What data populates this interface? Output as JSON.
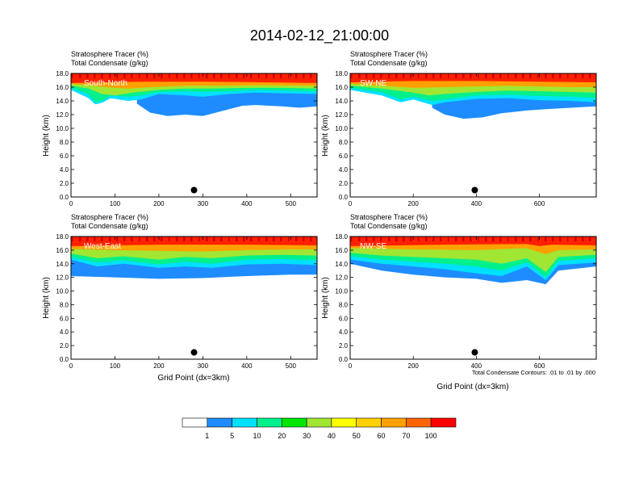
{
  "page_title": "2014-02-12_21:00:00",
  "colorbar": {
    "labels": [
      "1",
      "5",
      "10",
      "20",
      "30",
      "40",
      "50",
      "60",
      "70",
      "100"
    ],
    "colors": [
      "#ffffff",
      "#1e8cff",
      "#00e0ff",
      "#00f08c",
      "#00e600",
      "#a0e632",
      "#ffff00",
      "#ffd200",
      "#ffa000",
      "#ff6400",
      "#ff0000"
    ]
  },
  "contour_note": "Total Condensate Contours: .01 to .01 by .000",
  "chart_data": [
    {
      "type": "heatmap",
      "panel_label": "South-North",
      "title_line1": "Stratosphere Tracer   (%)",
      "title_line2": "Total Condensate   (g/kg)",
      "ylabel": "Height (km)",
      "xlabel": "",
      "xlim": [
        0,
        560
      ],
      "ylim": [
        0,
        18
      ],
      "xticks": [
        0,
        100,
        200,
        300,
        400,
        500
      ],
      "yticks": [
        "0.0",
        "2.0",
        "4.0",
        "6.0",
        "8.0",
        "10.0",
        "12.0",
        "14.0",
        "16.0",
        "18.0"
      ],
      "marker": {
        "x": 280,
        "y": 1.0
      },
      "bands": [
        {
          "level": 100,
          "bottom": [
            [
              0,
              16.6
            ],
            [
              150,
              16.8
            ],
            [
              300,
              16.8
            ],
            [
              450,
              16.7
            ],
            [
              560,
              16.6
            ]
          ]
        },
        {
          "level": 70,
          "bottom": [
            [
              0,
              16.5
            ],
            [
              40,
              16.3
            ],
            [
              80,
              16.0
            ],
            [
              130,
              15.8
            ],
            [
              180,
              16.0
            ],
            [
              260,
              16.2
            ],
            [
              340,
              16.2
            ],
            [
              440,
              16.3
            ],
            [
              560,
              16.2
            ]
          ]
        },
        {
          "level": 50,
          "bottom": [
            [
              0,
              16.2
            ],
            [
              40,
              15.8
            ],
            [
              70,
              15.0
            ],
            [
              100,
              14.8
            ],
            [
              140,
              15.2
            ],
            [
              200,
              15.6
            ],
            [
              260,
              15.8
            ],
            [
              320,
              15.8
            ],
            [
              400,
              15.9
            ],
            [
              480,
              15.9
            ],
            [
              560,
              15.8
            ]
          ]
        },
        {
          "level": 30,
          "bottom": [
            [
              0,
              15.9
            ],
            [
              40,
              15.0
            ],
            [
              55,
              13.8
            ],
            [
              70,
              14.0
            ],
            [
              90,
              14.8
            ],
            [
              130,
              14.6
            ],
            [
              160,
              14.8
            ],
            [
              200,
              15.3
            ],
            [
              260,
              15.4
            ],
            [
              300,
              15.3
            ],
            [
              360,
              15.4
            ],
            [
              420,
              15.6
            ],
            [
              480,
              15.5
            ],
            [
              560,
              15.4
            ]
          ]
        },
        {
          "level": 10,
          "bottom": [
            [
              0,
              15.6
            ],
            [
              40,
              14.4
            ],
            [
              55,
              13.5
            ],
            [
              70,
              13.7
            ],
            [
              90,
              14.4
            ],
            [
              130,
              14.0
            ],
            [
              160,
              14.2
            ],
            [
              200,
              15.0
            ],
            [
              260,
              14.8
            ],
            [
              300,
              14.6
            ],
            [
              360,
              15.0
            ],
            [
              420,
              15.2
            ],
            [
              480,
              15.1
            ],
            [
              560,
              15.0
            ]
          ]
        },
        {
          "level": 5,
          "bottom": [
            [
              150,
              13.6
            ],
            [
              180,
              12.3
            ],
            [
              220,
              11.8
            ],
            [
              260,
              12.0
            ],
            [
              300,
              11.8
            ],
            [
              330,
              12.3
            ],
            [
              360,
              12.8
            ],
            [
              390,
              13.3
            ],
            [
              420,
              13.4
            ],
            [
              480,
              13.2
            ],
            [
              520,
              13.0
            ],
            [
              560,
              13.2
            ]
          ]
        }
      ]
    },
    {
      "type": "heatmap",
      "panel_label": "SW-NE",
      "title_line1": "Stratosphere Tracer   (%)",
      "title_line2": "Total Condensate   (g/kg)",
      "ylabel": "Height (km)",
      "xlabel": "",
      "xlim": [
        0,
        780
      ],
      "ylim": [
        0,
        18
      ],
      "xticks": [
        0,
        200,
        400,
        600
      ],
      "yticks": [
        "0.0",
        "2.0",
        "4.0",
        "6.0",
        "8.0",
        "10.0",
        "12.0",
        "14.0",
        "16.0",
        "18.0"
      ],
      "marker": {
        "x": 395,
        "y": 1.0
      },
      "bands": [
        {
          "level": 100,
          "bottom": [
            [
              0,
              16.7
            ],
            [
              200,
              16.9
            ],
            [
              400,
              16.9
            ],
            [
              600,
              16.8
            ],
            [
              780,
              16.7
            ]
          ]
        },
        {
          "level": 70,
          "bottom": [
            [
              0,
              16.5
            ],
            [
              100,
              16.2
            ],
            [
              200,
              15.9
            ],
            [
              300,
              16.0
            ],
            [
              400,
              16.1
            ],
            [
              500,
              16.2
            ],
            [
              600,
              16.1
            ],
            [
              700,
              16.0
            ],
            [
              780,
              16.0
            ]
          ]
        },
        {
          "level": 50,
          "bottom": [
            [
              0,
              16.2
            ],
            [
              100,
              15.8
            ],
            [
              200,
              15.2
            ],
            [
              250,
              14.8
            ],
            [
              300,
              15.0
            ],
            [
              400,
              15.3
            ],
            [
              500,
              15.5
            ],
            [
              600,
              15.4
            ],
            [
              700,
              15.3
            ],
            [
              780,
              15.2
            ]
          ]
        },
        {
          "level": 30,
          "bottom": [
            [
              0,
              15.9
            ],
            [
              100,
              15.3
            ],
            [
              160,
              14.2
            ],
            [
              200,
              14.6
            ],
            [
              260,
              14.0
            ],
            [
              300,
              14.2
            ],
            [
              400,
              14.8
            ],
            [
              500,
              14.9
            ],
            [
              600,
              14.7
            ],
            [
              700,
              14.6
            ],
            [
              780,
              14.4
            ]
          ]
        },
        {
          "level": 10,
          "bottom": [
            [
              0,
              15.6
            ],
            [
              100,
              14.8
            ],
            [
              160,
              13.8
            ],
            [
              200,
              14.2
            ],
            [
              260,
              13.4
            ],
            [
              300,
              13.8
            ],
            [
              400,
              14.3
            ],
            [
              500,
              14.4
            ],
            [
              600,
              14.1
            ],
            [
              700,
              14.0
            ],
            [
              780,
              13.8
            ]
          ]
        },
        {
          "level": 5,
          "bottom": [
            [
              260,
              13.0
            ],
            [
              300,
              12.0
            ],
            [
              360,
              11.4
            ],
            [
              420,
              11.6
            ],
            [
              480,
              12.2
            ],
            [
              560,
              12.6
            ],
            [
              620,
              12.8
            ],
            [
              700,
              13.0
            ],
            [
              780,
              13.2
            ]
          ]
        }
      ]
    },
    {
      "type": "heatmap",
      "panel_label": "West-East",
      "title_line1": "Stratosphere Tracer   (%)",
      "title_line2": "Total Condensate   (g/kg)",
      "ylabel": "Height (km)",
      "xlabel": "Grid Point (dx=3km)",
      "xlim": [
        0,
        560
      ],
      "ylim": [
        0,
        18
      ],
      "xticks": [
        0,
        100,
        200,
        300,
        400,
        500
      ],
      "yticks": [
        "0.0",
        "2.0",
        "4.0",
        "6.0",
        "8.0",
        "10.0",
        "12.0",
        "14.0",
        "16.0",
        "18.0"
      ],
      "marker": {
        "x": 280,
        "y": 1.0
      },
      "bands": [
        {
          "level": 100,
          "bottom": [
            [
              0,
              16.6
            ],
            [
              200,
              16.8
            ],
            [
              400,
              16.8
            ],
            [
              560,
              16.7
            ]
          ]
        },
        {
          "level": 70,
          "bottom": [
            [
              0,
              16.2
            ],
            [
              100,
              16.0
            ],
            [
              200,
              15.9
            ],
            [
              300,
              15.8
            ],
            [
              400,
              16.0
            ],
            [
              500,
              16.1
            ],
            [
              560,
              16.1
            ]
          ]
        },
        {
          "level": 50,
          "bottom": [
            [
              0,
              15.5
            ],
            [
              60,
              14.8
            ],
            [
              120,
              15.1
            ],
            [
              200,
              14.6
            ],
            [
              260,
              15.0
            ],
            [
              320,
              14.8
            ],
            [
              400,
              15.2
            ],
            [
              480,
              15.3
            ],
            [
              560,
              15.2
            ]
          ]
        },
        {
          "level": 30,
          "bottom": [
            [
              0,
              15.0
            ],
            [
              60,
              14.2
            ],
            [
              120,
              14.5
            ],
            [
              200,
              13.9
            ],
            [
              260,
              14.3
            ],
            [
              320,
              14.0
            ],
            [
              400,
              14.6
            ],
            [
              480,
              14.7
            ],
            [
              560,
              14.5
            ]
          ]
        },
        {
          "level": 10,
          "bottom": [
            [
              0,
              14.6
            ],
            [
              60,
              13.6
            ],
            [
              120,
              14.0
            ],
            [
              200,
              13.4
            ],
            [
              260,
              13.6
            ],
            [
              320,
              13.4
            ],
            [
              400,
              13.9
            ],
            [
              480,
              14.0
            ],
            [
              560,
              13.8
            ]
          ]
        },
        {
          "level": 5,
          "bottom": [
            [
              0,
              12.2
            ],
            [
              100,
              12.0
            ],
            [
              200,
              11.8
            ],
            [
              300,
              11.9
            ],
            [
              400,
              12.2
            ],
            [
              500,
              12.4
            ],
            [
              560,
              12.4
            ]
          ]
        }
      ]
    },
    {
      "type": "heatmap",
      "panel_label": "NW-SE",
      "title_line1": "Stratosphere Tracer   (%)",
      "title_line2": "Total Condensate   (g/kg)",
      "ylabel": "Height (km)",
      "xlabel": "Grid Point (dx=3km)",
      "xlim": [
        0,
        780
      ],
      "ylim": [
        0,
        18
      ],
      "xticks": [
        0,
        200,
        400,
        600
      ],
      "yticks": [
        "0.0",
        "2.0",
        "4.0",
        "6.0",
        "8.0",
        "10.0",
        "12.0",
        "14.0",
        "16.0",
        "18.0"
      ],
      "marker": {
        "x": 395,
        "y": 1.0
      },
      "bands": [
        {
          "level": 100,
          "bottom": [
            [
              0,
              16.6
            ],
            [
              300,
              16.8
            ],
            [
              560,
              16.9
            ],
            [
              600,
              16.6
            ],
            [
              640,
              16.8
            ],
            [
              780,
              16.7
            ]
          ]
        },
        {
          "level": 70,
          "bottom": [
            [
              0,
              16.3
            ],
            [
              200,
              16.1
            ],
            [
              400,
              16.0
            ],
            [
              560,
              16.3
            ],
            [
              620,
              15.4
            ],
            [
              660,
              16.0
            ],
            [
              780,
              16.1
            ]
          ]
        },
        {
          "level": 50,
          "bottom": [
            [
              0,
              15.6
            ],
            [
              100,
              15.2
            ],
            [
              200,
              15.0
            ],
            [
              300,
              14.8
            ],
            [
              400,
              14.6
            ],
            [
              480,
              14.0
            ],
            [
              560,
              14.8
            ],
            [
              620,
              12.8
            ],
            [
              660,
              15.0
            ],
            [
              780,
              15.3
            ]
          ]
        },
        {
          "level": 30,
          "bottom": [
            [
              0,
              15.1
            ],
            [
              100,
              14.6
            ],
            [
              200,
              14.3
            ],
            [
              300,
              14.0
            ],
            [
              400,
              13.6
            ],
            [
              480,
              13.0
            ],
            [
              560,
              14.2
            ],
            [
              620,
              12.0
            ],
            [
              660,
              14.4
            ],
            [
              780,
              14.8
            ]
          ]
        },
        {
          "level": 10,
          "bottom": [
            [
              0,
              14.6
            ],
            [
              100,
              14.0
            ],
            [
              200,
              13.6
            ],
            [
              300,
              13.2
            ],
            [
              400,
              12.6
            ],
            [
              480,
              12.2
            ],
            [
              560,
              13.6
            ],
            [
              620,
              11.6
            ],
            [
              660,
              13.8
            ],
            [
              780,
              14.2
            ]
          ]
        },
        {
          "level": 5,
          "bottom": [
            [
              0,
              14.0
            ],
            [
              100,
              13.0
            ],
            [
              200,
              12.4
            ],
            [
              300,
              12.0
            ],
            [
              400,
              11.8
            ],
            [
              480,
              11.2
            ],
            [
              560,
              11.6
            ],
            [
              620,
              11.0
            ],
            [
              660,
              13.0
            ],
            [
              780,
              13.6
            ]
          ]
        }
      ]
    }
  ]
}
